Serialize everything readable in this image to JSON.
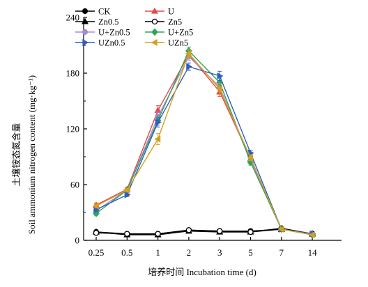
{
  "chart_data": {
    "type": "line",
    "title": "",
    "xlabel": "培养时间 Incubation time (d)",
    "ylabel": "Soil ammonium nitrogen content (mg·kg⁻¹)",
    "ylabel_cn": "土壤铵态氮含量",
    "categories": [
      "0.25",
      "0.5",
      "1",
      "2",
      "3",
      "5",
      "7",
      "14"
    ],
    "ylim": [
      0,
      240
    ],
    "yticks": [
      0,
      60,
      120,
      180,
      240
    ],
    "grid": false,
    "legend_position": "top-left",
    "series": [
      {
        "name": "CK",
        "color": "#000000",
        "marker": "filled-circle",
        "values": [
          9,
          7,
          7,
          11,
          10,
          10,
          12,
          7
        ],
        "errors": [
          2,
          1.5,
          1.5,
          1.5,
          1.5,
          1.5,
          1.5,
          1
        ]
      },
      {
        "name": "U",
        "color": "#e8474a",
        "marker": "triangle-up",
        "values": [
          38,
          55,
          140,
          200,
          160,
          88,
          12,
          7
        ],
        "errors": [
          2,
          2,
          5,
          4,
          5,
          3,
          1.5,
          1
        ]
      },
      {
        "name": "Zn0.5",
        "color": "#000000",
        "marker": "filled-triangle-up",
        "values": [
          9,
          6,
          6,
          10,
          9,
          9,
          12,
          7
        ],
        "errors": [
          2,
          1.5,
          1.5,
          1.5,
          1.5,
          1.5,
          1.5,
          1
        ]
      },
      {
        "name": "Zn5",
        "color": "#000000",
        "marker": "open-circle",
        "values": [
          8,
          7,
          7,
          11,
          10,
          9,
          13,
          7
        ],
        "errors": [
          2,
          1.5,
          1.5,
          1.5,
          1.5,
          1.5,
          1.5,
          1
        ]
      },
      {
        "name": "U+Zn0.5",
        "color": "#a78bd0",
        "marker": "circle",
        "values": [
          32,
          54,
          133,
          198,
          165,
          86,
          12,
          6
        ],
        "errors": [
          2,
          2,
          5,
          4,
          5,
          3,
          1.5,
          1
        ]
      },
      {
        "name": "U+Zn5",
        "color": "#2fa55a",
        "marker": "diamond",
        "values": [
          29,
          54,
          129,
          204,
          170,
          84,
          12,
          6
        ],
        "errors": [
          2,
          2,
          5,
          4,
          5,
          3,
          1.5,
          1
        ]
      },
      {
        "name": "UZn0.5",
        "color": "#2f5fc1",
        "marker": "triangle-right",
        "values": [
          33,
          49,
          127,
          187,
          177,
          94,
          12,
          7
        ],
        "errors": [
          2,
          2,
          5,
          4,
          5,
          3,
          1.5,
          1
        ]
      },
      {
        "name": "UZn5",
        "color": "#d4a020",
        "marker": "triangle-left",
        "values": [
          37,
          54,
          109,
          201,
          163,
          89,
          12,
          6
        ],
        "errors": [
          2,
          2,
          6,
          4,
          6,
          3,
          1.5,
          1
        ]
      }
    ]
  }
}
